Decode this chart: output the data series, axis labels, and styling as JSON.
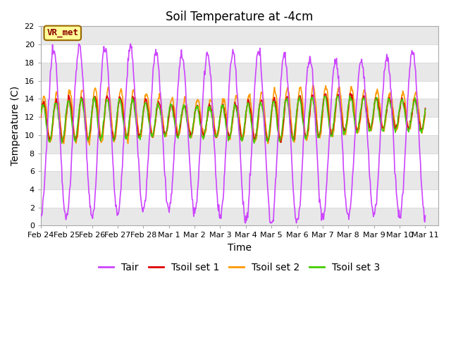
{
  "title": "Soil Temperature at -4cm",
  "xlabel": "Time",
  "ylabel": "Temperature (C)",
  "ylim": [
    0,
    22
  ],
  "annotation_text": "VR_met",
  "annotation_color": "#8B0000",
  "annotation_bg": "#FFFF99",
  "bg_color": "#FFFFFF",
  "line_colors": {
    "Tair": "#CC44FF",
    "Tsoil1": "#DD0000",
    "Tsoil2": "#FF9900",
    "Tsoil3": "#44CC00"
  },
  "legend_labels": [
    "Tair",
    "Tsoil set 1",
    "Tsoil set 2",
    "Tsoil set 3"
  ],
  "xtick_labels": [
    "Feb 24",
    "Feb 25",
    "Feb 26",
    "Feb 27",
    "Feb 28",
    "Mar 1",
    "Mar 2",
    "Mar 3",
    "Mar 4",
    "Mar 5",
    "Mar 6",
    "Mar 7",
    "Mar 8",
    "Mar 9",
    "Mar 10",
    "Mar 11"
  ],
  "yticks": [
    0,
    2,
    4,
    6,
    8,
    10,
    12,
    14,
    16,
    18,
    20,
    22
  ],
  "title_fontsize": 12,
  "tick_fontsize": 8,
  "label_fontsize": 10,
  "legend_fontsize": 10,
  "band_color": "#E8E8E8",
  "grid_color": "#DDDDDD"
}
